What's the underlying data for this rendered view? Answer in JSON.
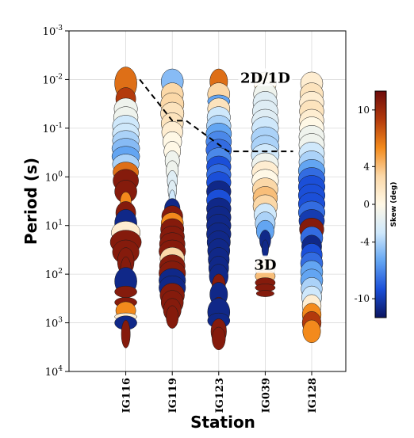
{
  "chart_data": {
    "type": "scatter",
    "title": "",
    "xlabel": "Station",
    "ylabel": "Period (s)",
    "y_scale": "log",
    "y_reversed": true,
    "ylim": [
      0.001,
      10000
    ],
    "y_ticks": [
      {
        "base": "10",
        "exp": "-3",
        "value": 0.001
      },
      {
        "base": "10",
        "exp": "-2",
        "value": 0.01
      },
      {
        "base": "10",
        "exp": "-1",
        "value": 0.1
      },
      {
        "base": "10",
        "exp": "0",
        "value": 1
      },
      {
        "base": "10",
        "exp": "1",
        "value": 10
      },
      {
        "base": "10",
        "exp": "2",
        "value": 100
      },
      {
        "base": "10",
        "exp": "3",
        "value": 1000
      },
      {
        "base": "10",
        "exp": "4",
        "value": 10000
      }
    ],
    "grid": true,
    "stations": [
      "IG116",
      "IG119",
      "IG123",
      "IG039",
      "IG128"
    ],
    "mark": "phase tensor ellipses colored by skew",
    "colorbar": {
      "label": "Skew (deg)",
      "range": [
        -12,
        12
      ],
      "ticks": [
        "10",
        "4",
        "0",
        "-4",
        "-10"
      ],
      "tick_values": [
        10,
        4,
        0,
        -4,
        -10
      ],
      "placement": "right",
      "colormap": [
        "#0b1560",
        "#1b4fd8",
        "#63a5f2",
        "#cfe8fb",
        "#fff8e6",
        "#fbd8a8",
        "#f38a1c",
        "#b33a0c",
        "#6e0c0c"
      ]
    },
    "annotations": [
      {
        "text": "2D/1D",
        "station": "IG039",
        "period": 0.01
      },
      {
        "text": "3D",
        "station": "IG039",
        "period": 70
      }
    ],
    "boundary_line": {
      "style": "dashed",
      "points": [
        {
          "station": 0.3,
          "period": 0.01
        },
        {
          "station": 1.0,
          "period": 0.07
        },
        {
          "station": 1.3,
          "period": 0.07
        },
        {
          "station": 2.2,
          "period": 0.3
        },
        {
          "station": 3.6,
          "period": 0.3
        }
      ]
    },
    "series": [
      {
        "station": "IG116",
        "points": [
          {
            "period": 0.012,
            "skew": 7,
            "w": 1.0,
            "h": 1.3
          },
          {
            "period": 0.025,
            "skew": 9,
            "w": 0.9,
            "h": 0.9
          },
          {
            "period": 0.04,
            "skew": -1,
            "w": 1.05,
            "h": 0.85
          },
          {
            "period": 0.06,
            "skew": -1,
            "w": 1.1,
            "h": 0.85
          },
          {
            "period": 0.09,
            "skew": -3,
            "w": 1.2,
            "h": 0.85
          },
          {
            "period": 0.13,
            "skew": -3,
            "w": 1.2,
            "h": 0.85
          },
          {
            "period": 0.18,
            "skew": -4,
            "w": 1.2,
            "h": 0.8
          },
          {
            "period": 0.26,
            "skew": -5,
            "w": 1.25,
            "h": 0.8
          },
          {
            "period": 0.38,
            "skew": -6,
            "w": 1.25,
            "h": 0.8
          },
          {
            "period": 0.55,
            "skew": -4,
            "w": 1.2,
            "h": 0.8
          },
          {
            "period": 0.8,
            "skew": 7,
            "w": 1.15,
            "h": 0.8
          },
          {
            "period": 1.2,
            "skew": 11,
            "w": 1.15,
            "h": 0.9
          },
          {
            "period": 2.0,
            "skew": 11,
            "w": 1.0,
            "h": 0.9
          },
          {
            "period": 3.2,
            "skew": 6,
            "w": 0.5,
            "h": 0.75
          },
          {
            "period": 5.5,
            "skew": 11,
            "w": 0.9,
            "h": 0.9
          },
          {
            "period": 9,
            "skew": -11,
            "w": 1.0,
            "h": 1.1
          },
          {
            "period": 14,
            "skew": 1,
            "w": 1.3,
            "h": 0.9
          },
          {
            "period": 22,
            "skew": 11,
            "w": 1.4,
            "h": 0.95
          },
          {
            "period": 35,
            "skew": 11,
            "w": 1.2,
            "h": 0.95
          },
          {
            "period": 55,
            "skew": 11,
            "w": 0.75,
            "h": 1.1
          },
          {
            "period": 90,
            "skew": 11,
            "w": 0.5,
            "h": 1.2
          },
          {
            "period": 140,
            "skew": -11,
            "w": 1.0,
            "h": 1.1
          },
          {
            "period": 230,
            "skew": 11,
            "w": 1.0,
            "h": 0.45
          },
          {
            "period": 380,
            "skew": 11,
            "w": 1.0,
            "h": 0.4
          },
          {
            "period": 560,
            "skew": 6,
            "w": 0.9,
            "h": 0.7
          },
          {
            "period": 750,
            "skew": 1,
            "w": 1.0,
            "h": 0.3
          },
          {
            "period": 1000,
            "skew": -11,
            "w": 1.0,
            "h": 0.55
          },
          {
            "period": 1700,
            "skew": 11,
            "w": 0.4,
            "h": 1.1
          }
        ]
      },
      {
        "station": "IG119",
        "points": [
          {
            "period": 0.011,
            "skew": -5,
            "w": 1.0,
            "h": 1.0
          },
          {
            "period": 0.02,
            "skew": 3,
            "w": 1.0,
            "h": 0.9
          },
          {
            "period": 0.032,
            "skew": 3,
            "w": 1.05,
            "h": 0.9
          },
          {
            "period": 0.05,
            "skew": 2,
            "w": 1.05,
            "h": 0.9
          },
          {
            "period": 0.08,
            "skew": 2,
            "w": 1.0,
            "h": 0.85
          },
          {
            "period": 0.12,
            "skew": 1,
            "w": 0.95,
            "h": 0.85
          },
          {
            "period": 0.19,
            "skew": 0,
            "w": 0.85,
            "h": 0.8
          },
          {
            "period": 0.3,
            "skew": 0,
            "w": 0.75,
            "h": 0.8
          },
          {
            "period": 0.47,
            "skew": -1,
            "w": 0.65,
            "h": 0.8
          },
          {
            "period": 0.75,
            "skew": -1,
            "w": 0.55,
            "h": 0.8
          },
          {
            "period": 1.2,
            "skew": -2,
            "w": 0.45,
            "h": 0.8
          },
          {
            "period": 1.9,
            "skew": -2,
            "w": 0.38,
            "h": 0.8
          },
          {
            "period": 3.0,
            "skew": -3,
            "w": 0.3,
            "h": 0.8
          },
          {
            "period": 4.5,
            "skew": -11,
            "w": 0.7,
            "h": 0.8
          },
          {
            "period": 6.5,
            "skew": 11,
            "w": 0.95,
            "h": 0.85
          },
          {
            "period": 9,
            "skew": 6,
            "w": 1.0,
            "h": 0.85
          },
          {
            "period": 12,
            "skew": 11,
            "w": 1.05,
            "h": 0.85
          },
          {
            "period": 17,
            "skew": 11,
            "w": 1.1,
            "h": 0.85
          },
          {
            "period": 24,
            "skew": 11,
            "w": 1.15,
            "h": 0.9
          },
          {
            "period": 34,
            "skew": 11,
            "w": 1.2,
            "h": 0.9
          },
          {
            "period": 48,
            "skew": 3,
            "w": 1.1,
            "h": 0.9
          },
          {
            "period": 68,
            "skew": 11,
            "w": 1.15,
            "h": 0.9
          },
          {
            "period": 95,
            "skew": 11,
            "w": 1.2,
            "h": 0.95
          },
          {
            "period": 135,
            "skew": -11,
            "w": 1.2,
            "h": 0.95
          },
          {
            "period": 190,
            "skew": -11,
            "w": 1.2,
            "h": 0.95
          },
          {
            "period": 270,
            "skew": 11,
            "w": 1.1,
            "h": 0.95
          },
          {
            "period": 380,
            "skew": 11,
            "w": 1.0,
            "h": 0.95
          },
          {
            "period": 540,
            "skew": 11,
            "w": 0.8,
            "h": 0.9
          },
          {
            "period": 760,
            "skew": 11,
            "w": 0.55,
            "h": 0.9
          }
        ]
      },
      {
        "station": "IG123",
        "points": [
          {
            "period": 0.011,
            "skew": 7,
            "w": 0.8,
            "h": 1.0
          },
          {
            "period": 0.02,
            "skew": 3,
            "w": 1.0,
            "h": 0.9
          },
          {
            "period": 0.028,
            "skew": -6,
            "w": 1.0,
            "h": 0.5
          },
          {
            "period": 0.04,
            "skew": 2,
            "w": 1.0,
            "h": 0.85
          },
          {
            "period": 0.06,
            "skew": -3,
            "w": 1.05,
            "h": 0.85
          },
          {
            "period": 0.09,
            "skew": -4,
            "w": 1.1,
            "h": 0.85
          },
          {
            "period": 0.13,
            "skew": -6,
            "w": 1.15,
            "h": 0.85
          },
          {
            "period": 0.19,
            "skew": -7,
            "w": 1.15,
            "h": 0.85
          },
          {
            "period": 0.28,
            "skew": -8,
            "w": 1.15,
            "h": 0.85
          },
          {
            "period": 0.42,
            "skew": -7,
            "w": 1.1,
            "h": 0.85
          },
          {
            "period": 0.62,
            "skew": -9,
            "w": 1.1,
            "h": 0.85
          },
          {
            "period": 0.9,
            "skew": -8,
            "w": 1.1,
            "h": 0.85
          },
          {
            "period": 1.3,
            "skew": -9,
            "w": 1.1,
            "h": 0.85
          },
          {
            "period": 2.0,
            "skew": -11,
            "w": 1.1,
            "h": 0.85
          },
          {
            "period": 3.0,
            "skew": -9,
            "w": 1.1,
            "h": 0.85
          },
          {
            "period": 4.5,
            "skew": -11,
            "w": 1.1,
            "h": 0.85
          },
          {
            "period": 6.8,
            "skew": -11,
            "w": 1.1,
            "h": 0.9
          },
          {
            "period": 10,
            "skew": -11,
            "w": 1.1,
            "h": 0.9
          },
          {
            "period": 15,
            "skew": -11,
            "w": 1.1,
            "h": 0.9
          },
          {
            "period": 22,
            "skew": -11,
            "w": 1.05,
            "h": 0.9
          },
          {
            "period": 33,
            "skew": -11,
            "w": 1.0,
            "h": 0.95
          },
          {
            "period": 50,
            "skew": -11,
            "w": 0.95,
            "h": 0.95
          },
          {
            "period": 75,
            "skew": -11,
            "w": 0.9,
            "h": 0.95
          },
          {
            "period": 110,
            "skew": -11,
            "w": 0.85,
            "h": 0.95
          },
          {
            "period": 170,
            "skew": 11,
            "w": 0.6,
            "h": 0.9
          },
          {
            "period": 260,
            "skew": -11,
            "w": 0.8,
            "h": 0.95
          },
          {
            "period": 400,
            "skew": 11,
            "w": 0.5,
            "h": 0.5
          },
          {
            "period": 600,
            "skew": -11,
            "w": 1.0,
            "h": 1.1
          },
          {
            "period": 900,
            "skew": -11,
            "w": 1.0,
            "h": 0.6
          },
          {
            "period": 1500,
            "skew": 11,
            "w": 0.7,
            "h": 1.0
          },
          {
            "period": 2100,
            "skew": 11,
            "w": 0.6,
            "h": 0.9
          }
        ]
      },
      {
        "station": "IG039",
        "points": [
          {
            "period": 0.012,
            "skew": 1,
            "w": 1.0,
            "h": 0.9
          },
          {
            "period": 0.02,
            "skew": -1,
            "w": 1.05,
            "h": 0.9
          },
          {
            "period": 0.03,
            "skew": -2,
            "w": 1.1,
            "h": 0.9
          },
          {
            "period": 0.045,
            "skew": -2,
            "w": 1.15,
            "h": 0.9
          },
          {
            "period": 0.07,
            "skew": -2,
            "w": 1.2,
            "h": 0.9
          },
          {
            "period": 0.1,
            "skew": -3,
            "w": 1.2,
            "h": 0.9
          },
          {
            "period": 0.16,
            "skew": -4,
            "w": 1.25,
            "h": 0.9
          },
          {
            "period": 0.24,
            "skew": -4,
            "w": 1.25,
            "h": 0.9
          },
          {
            "period": 0.36,
            "skew": -3,
            "w": 1.25,
            "h": 0.9
          },
          {
            "period": 0.55,
            "skew": -1,
            "w": 1.2,
            "h": 0.9
          },
          {
            "period": 0.8,
            "skew": 1,
            "w": 1.2,
            "h": 0.9
          },
          {
            "period": 1.2,
            "skew": 0,
            "w": 1.2,
            "h": 0.9
          },
          {
            "period": 1.8,
            "skew": 3,
            "w": 1.15,
            "h": 0.9
          },
          {
            "period": 2.7,
            "skew": 4,
            "w": 1.1,
            "h": 0.9
          },
          {
            "period": 4.0,
            "skew": 3,
            "w": 1.1,
            "h": 0.9
          },
          {
            "period": 6.0,
            "skew": -3,
            "w": 1.0,
            "h": 0.9
          },
          {
            "period": 9.0,
            "skew": -4,
            "w": 0.9,
            "h": 0.9
          },
          {
            "period": 13,
            "skew": -6,
            "w": 0.8,
            "h": 0.85
          },
          {
            "period": 20,
            "skew": -11,
            "w": 0.5,
            "h": 0.8
          },
          {
            "period": 30,
            "skew": -11,
            "w": 0.3,
            "h": 0.7
          },
          {
            "period": 75,
            "skew": 2,
            "w": 0.9,
            "h": 0.9
          },
          {
            "period": 110,
            "skew": 4,
            "w": 0.9,
            "h": 0.5
          },
          {
            "period": 150,
            "skew": 11,
            "w": 0.9,
            "h": 0.4
          },
          {
            "period": 190,
            "skew": 11,
            "w": 0.9,
            "h": 0.3
          },
          {
            "period": 250,
            "skew": 11,
            "w": 0.8,
            "h": 0.25
          }
        ]
      },
      {
        "station": "IG128",
        "points": [
          {
            "period": 0.012,
            "skew": 1,
            "w": 1.0,
            "h": 0.9
          },
          {
            "period": 0.02,
            "skew": 2,
            "w": 1.05,
            "h": 0.9
          },
          {
            "period": 0.03,
            "skew": 1,
            "w": 1.1,
            "h": 0.9
          },
          {
            "period": 0.045,
            "skew": 2,
            "w": 1.1,
            "h": 0.9
          },
          {
            "period": 0.07,
            "skew": 1,
            "w": 1.1,
            "h": 0.9
          },
          {
            "period": 0.1,
            "skew": 0,
            "w": 1.1,
            "h": 0.9
          },
          {
            "period": 0.15,
            "skew": -1,
            "w": 1.15,
            "h": 0.9
          },
          {
            "period": 0.22,
            "skew": -1,
            "w": 1.15,
            "h": 0.9
          },
          {
            "period": 0.33,
            "skew": -3,
            "w": 1.15,
            "h": 0.9
          },
          {
            "period": 0.5,
            "skew": -4,
            "w": 1.15,
            "h": 0.9
          },
          {
            "period": 0.75,
            "skew": -6,
            "w": 1.2,
            "h": 0.9
          },
          {
            "period": 1.1,
            "skew": -8,
            "w": 1.2,
            "h": 0.9
          },
          {
            "period": 1.6,
            "skew": -9,
            "w": 1.2,
            "h": 0.9
          },
          {
            "period": 2.4,
            "skew": -9,
            "w": 1.2,
            "h": 0.9
          },
          {
            "period": 3.6,
            "skew": -9,
            "w": 1.2,
            "h": 0.9
          },
          {
            "period": 5.4,
            "skew": -8,
            "w": 1.2,
            "h": 0.9
          },
          {
            "period": 8.0,
            "skew": -10,
            "w": 1.15,
            "h": 0.9
          },
          {
            "period": 12,
            "skew": 11,
            "w": 1.1,
            "h": 0.9
          },
          {
            "period": 18,
            "skew": -8,
            "w": 1.0,
            "h": 0.9
          },
          {
            "period": 27,
            "skew": -11,
            "w": 0.9,
            "h": 0.9
          },
          {
            "period": 40,
            "skew": -9,
            "w": 0.95,
            "h": 0.9
          },
          {
            "period": 60,
            "skew": -8,
            "w": 1.0,
            "h": 0.9
          },
          {
            "period": 90,
            "skew": -6,
            "w": 1.0,
            "h": 0.9
          },
          {
            "period": 135,
            "skew": -6,
            "w": 1.0,
            "h": 0.9
          },
          {
            "period": 200,
            "skew": -4,
            "w": 0.95,
            "h": 0.9
          },
          {
            "period": 300,
            "skew": -3,
            "w": 0.9,
            "h": 0.9
          },
          {
            "period": 450,
            "skew": 1,
            "w": 0.85,
            "h": 0.9
          },
          {
            "period": 680,
            "skew": 6,
            "w": 0.85,
            "h": 0.9
          },
          {
            "period": 1000,
            "skew": 9,
            "w": 0.85,
            "h": 0.9
          },
          {
            "period": 1500,
            "skew": 6,
            "w": 0.8,
            "h": 0.9
          }
        ]
      }
    ]
  }
}
